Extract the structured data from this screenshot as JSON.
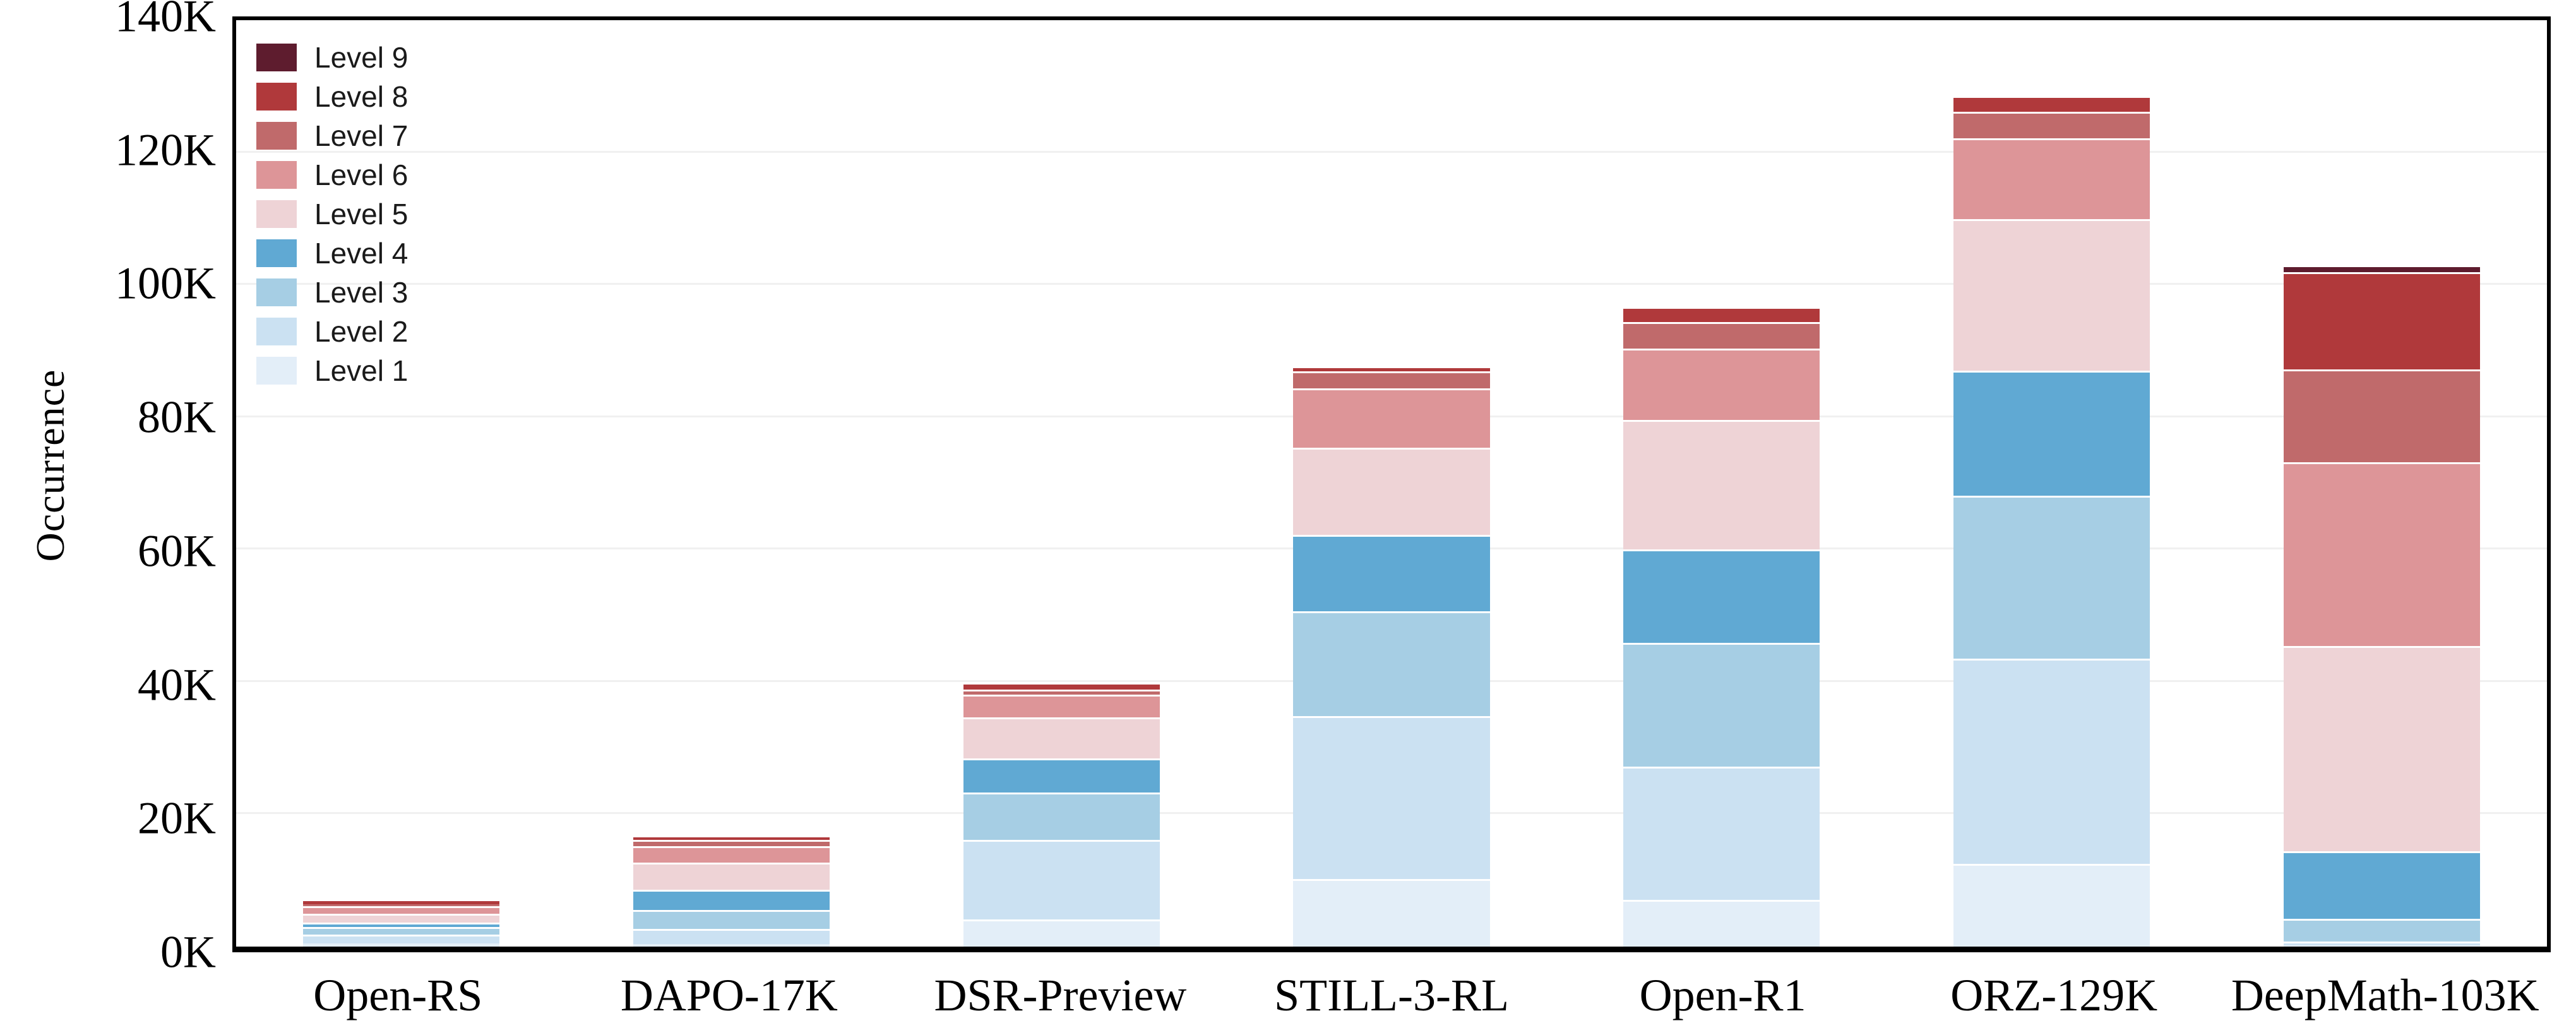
{
  "y_axis": {
    "label": "Occurrence",
    "ticks": [
      {
        "label": "0K",
        "value": 0
      },
      {
        "label": "20K",
        "value": 20000
      },
      {
        "label": "40K",
        "value": 40000
      },
      {
        "label": "60K",
        "value": 60000
      },
      {
        "label": "80K",
        "value": 80000
      },
      {
        "label": "100K",
        "value": 100000
      },
      {
        "label": "120K",
        "value": 120000
      },
      {
        "label": "140K",
        "value": 140000
      }
    ],
    "max": 140000
  },
  "legend": [
    {
      "label": "Level 9",
      "color": "#5e1c2e"
    },
    {
      "label": "Level 8",
      "color": "#b0393b"
    },
    {
      "label": "Level 7",
      "color": "#c06a6b"
    },
    {
      "label": "Level 6",
      "color": "#dd9598"
    },
    {
      "label": "Level 5",
      "color": "#eed3d6"
    },
    {
      "label": "Level 4",
      "color": "#60a9d3"
    },
    {
      "label": "Level 3",
      "color": "#a6cee4"
    },
    {
      "label": "Level 2",
      "color": "#cbe1f2"
    },
    {
      "label": "Level 1",
      "color": "#e3eef8"
    }
  ],
  "chart_data": {
    "type": "bar",
    "stacked": true,
    "title": "",
    "xlabel": "",
    "ylabel": "Occurrence",
    "ylim": [
      0,
      140000
    ],
    "grid": true,
    "legend_position": "upper left",
    "categories": [
      "Open-RS",
      "DAPO-17K",
      "DSR-Preview",
      "STILL-3-RL",
      "Open-R1",
      "ORZ-129K",
      "DeepMath-103K"
    ],
    "series": [
      {
        "name": "Level 1",
        "color": "#e3eef8",
        "values": [
          450,
          400,
          4150,
          10200,
          7100,
          12500,
          200
        ]
      },
      {
        "name": "Level 2",
        "color": "#cbe1f2",
        "values": [
          1350,
          2300,
          12000,
          24600,
          20100,
          31000,
          600
        ]
      },
      {
        "name": "Level 3",
        "color": "#a6cee4",
        "values": [
          1150,
          2800,
          7100,
          15900,
          18700,
          24600,
          3400
        ]
      },
      {
        "name": "Level 4",
        "color": "#60a9d3",
        "values": [
          650,
          3100,
          5200,
          11500,
          14100,
          18900,
          10200
        ]
      },
      {
        "name": "Level 5",
        "color": "#eed3d6",
        "values": [
          1400,
          4100,
          6200,
          13200,
          19600,
          22900,
          31000
        ]
      },
      {
        "name": "Level 6",
        "color": "#dd9598",
        "values": [
          1100,
          2500,
          3400,
          9000,
          10800,
          12300,
          27800
        ]
      },
      {
        "name": "Level 7",
        "color": "#c06a6b",
        "values": [
          300,
          900,
          800,
          2500,
          4000,
          4000,
          14000
        ]
      },
      {
        "name": "Level 8",
        "color": "#b0393b",
        "values": [
          500,
          700,
          1000,
          800,
          2300,
          2400,
          14700
        ]
      },
      {
        "name": "Level 9",
        "color": "#5e1c2e",
        "values": [
          0,
          0,
          0,
          0,
          0,
          0,
          1100
        ]
      }
    ],
    "totals_approx": [
      6900,
      16800,
      39850,
      87700,
      96700,
      128600,
      103000
    ]
  }
}
